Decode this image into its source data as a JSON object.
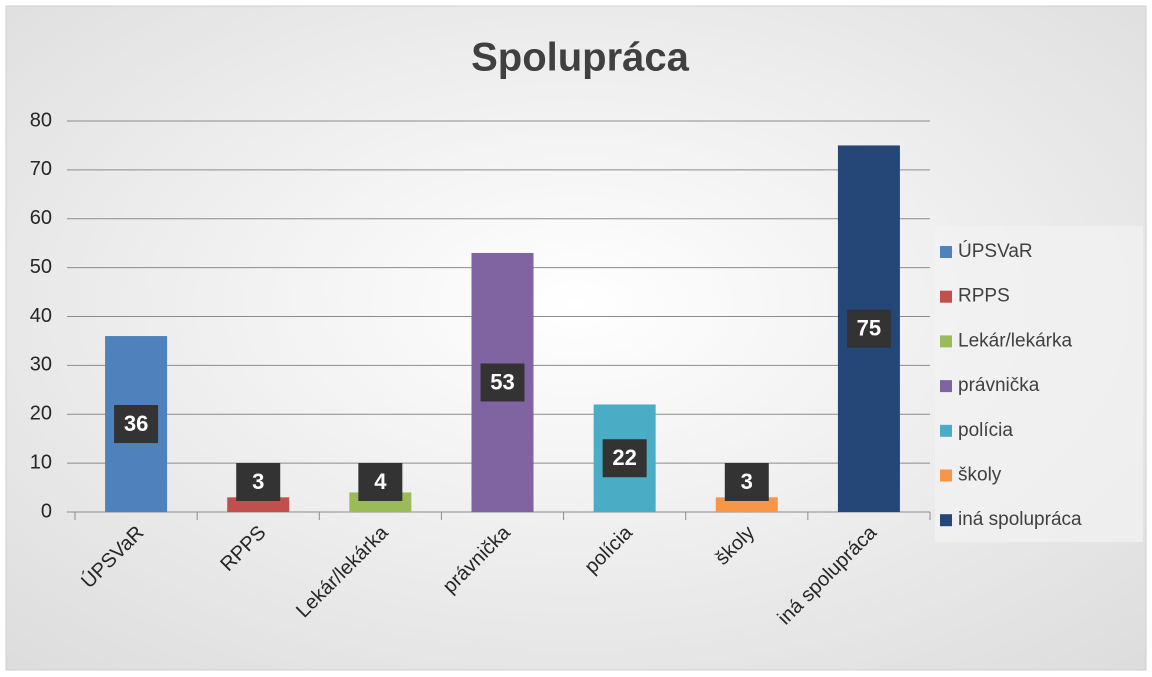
{
  "chart_data": {
    "type": "bar",
    "title": "Spolupráca",
    "categories": [
      "ÚPSVaR",
      "RPPS",
      "Lekár/lekárka",
      "právnička",
      "polícia",
      "školy",
      "iná spolupráca"
    ],
    "values": [
      36,
      3,
      4,
      53,
      22,
      3,
      75
    ],
    "colors": [
      "#4f81bd",
      "#c0504d",
      "#9bbb59",
      "#8064a2",
      "#4bacc6",
      "#f79646",
      "#254777"
    ],
    "ylim": [
      0,
      80
    ],
    "yticks": [
      0,
      10,
      20,
      30,
      40,
      50,
      60,
      70,
      80
    ],
    "grid": true,
    "legend": "right"
  }
}
